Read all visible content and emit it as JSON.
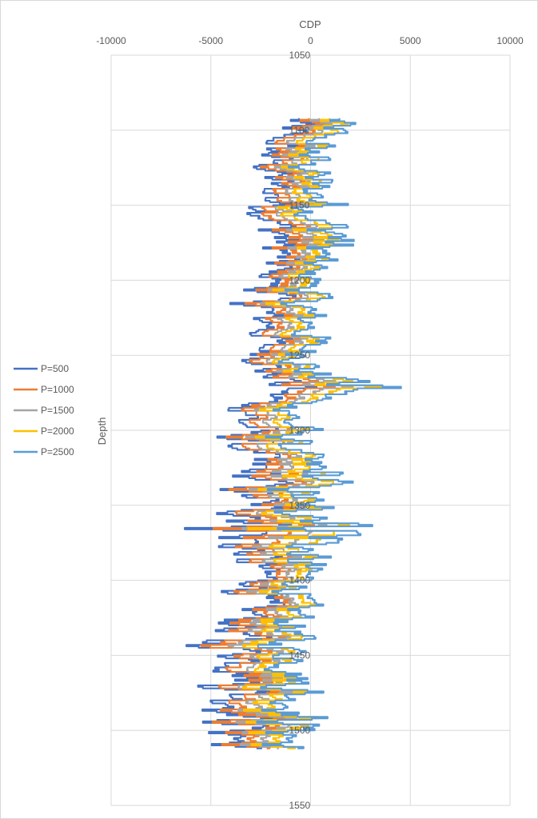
{
  "chart_data": {
    "type": "line",
    "orientation": "depth-profile",
    "title": "",
    "xlabel": "CDP",
    "ylabel": "Depth",
    "xlim": [
      -10000,
      10000
    ],
    "ylim": [
      1050,
      1550
    ],
    "y_inverted": true,
    "x_axis_position": "top",
    "x_ticks": [
      -10000,
      -5000,
      0,
      5000,
      10000
    ],
    "y_ticks": [
      1050,
      1100,
      1150,
      1200,
      1250,
      1300,
      1350,
      1400,
      1450,
      1500,
      1550
    ],
    "grid": true,
    "legend": "left",
    "depth_range": [
      1092,
      1512
    ],
    "depth_step": 1,
    "series": [
      {
        "name": "P=500",
        "color": "#4472C4"
      },
      {
        "name": "P=1000",
        "color": "#ED7D31"
      },
      {
        "name": "P=1500",
        "color": "#A5A5A5"
      },
      {
        "name": "P=2000",
        "color": "#FFC000"
      },
      {
        "name": "P=2500",
        "color": "#5B9BD5"
      }
    ],
    "profile_envelope": {
      "description_units": "CDP",
      "depths": [
        1092,
        1100,
        1110,
        1120,
        1130,
        1140,
        1150,
        1160,
        1170,
        1180,
        1190,
        1200,
        1210,
        1220,
        1230,
        1240,
        1250,
        1260,
        1270,
        1280,
        1290,
        1300,
        1310,
        1320,
        1330,
        1340,
        1350,
        1360,
        1370,
        1380,
        1390,
        1400,
        1410,
        1420,
        1430,
        1440,
        1450,
        1460,
        1470,
        1480,
        1490,
        1500,
        1512
      ],
      "p500_min": [
        -2300,
        -3100,
        -3400,
        -3500,
        -3700,
        -3600,
        -3800,
        -4100,
        -4000,
        -3300,
        -3200,
        -3700,
        -4200,
        -4500,
        -3700,
        -4100,
        -3800,
        -3600,
        -4300,
        -4400,
        -5300,
        -5800,
        -5600,
        -5900,
        -6000,
        -5500,
        -5000,
        -5600,
        -8800,
        -6000,
        -5200,
        -3800,
        -5800,
        -5300,
        -6000,
        -8600,
        -5200,
        -5500,
        -6200,
        -6300,
        -6500,
        -6300,
        -6600
      ],
      "p2500_max": [
        3100,
        2700,
        1800,
        1500,
        1900,
        2000,
        3300,
        2600,
        4700,
        2300,
        1400,
        1700,
        1500,
        1300,
        1800,
        1600,
        1900,
        1200,
        7600,
        1600,
        600,
        1000,
        800,
        1600,
        4300,
        1500,
        1500,
        5800,
        7000,
        1400,
        1700,
        1000,
        700,
        1200,
        1100,
        1200,
        1000,
        1400,
        1700,
        1600,
        1700,
        1600,
        300
      ],
      "center": [
        -300,
        -400,
        -700,
        -900,
        -800,
        -700,
        -900,
        -1000,
        -700,
        -600,
        -600,
        -700,
        -900,
        -1100,
        -800,
        -1000,
        -1300,
        -1100,
        -900,
        -1000,
        -1500,
        -1200,
        -1100,
        -1300,
        -1300,
        -1300,
        -1200,
        -1200,
        -1100,
        -1000,
        -1100,
        -900,
        -1100,
        -1200,
        -1300,
        -1300,
        -1300,
        -1400,
        -1300,
        -1200,
        -1300,
        -1300,
        -1700
      ]
    }
  }
}
